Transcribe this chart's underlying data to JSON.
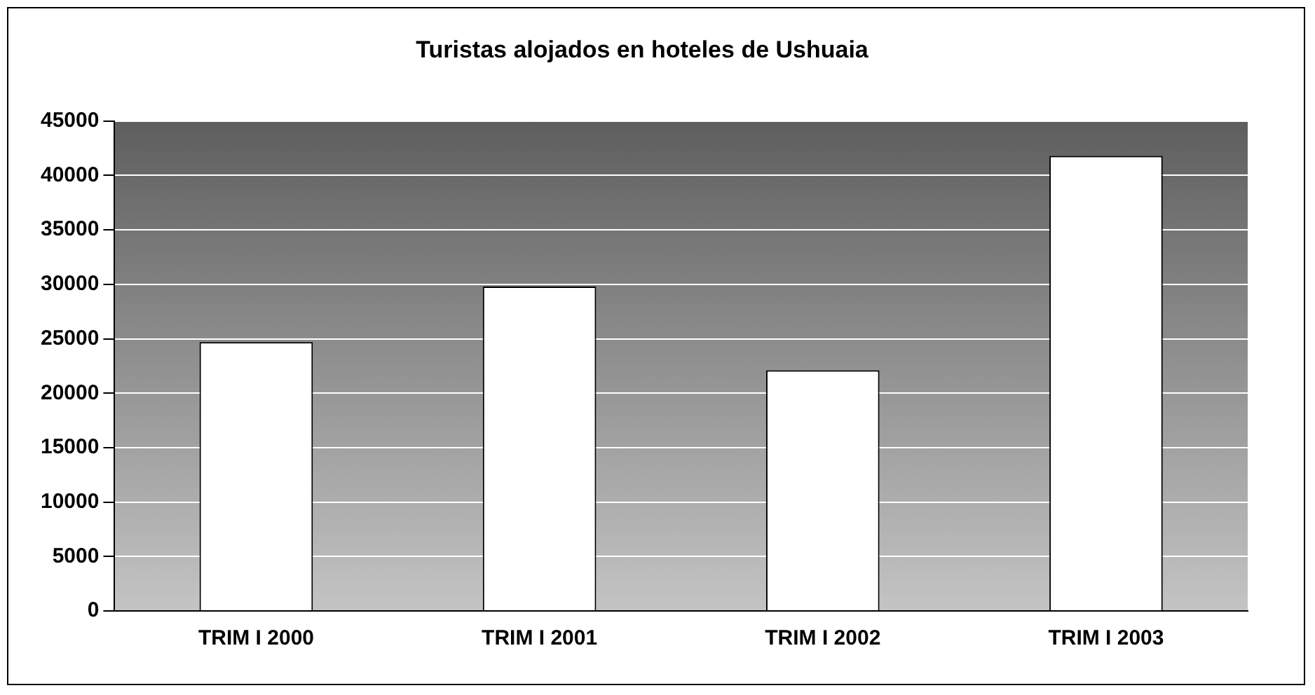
{
  "chart_data": {
    "type": "bar",
    "title": "Turistas alojados en hoteles de Ushuaia",
    "categories": [
      "TRIM I 2000",
      "TRIM I 2001",
      "TRIM I 2002",
      "TRIM I 2003"
    ],
    "values": [
      24700,
      29800,
      22100,
      41800
    ],
    "color": "#ffffff",
    "ylim": [
      0,
      45000
    ],
    "yticks": [
      0,
      5000,
      10000,
      15000,
      20000,
      25000,
      30000,
      35000,
      40000,
      45000
    ],
    "grid": "y"
  }
}
